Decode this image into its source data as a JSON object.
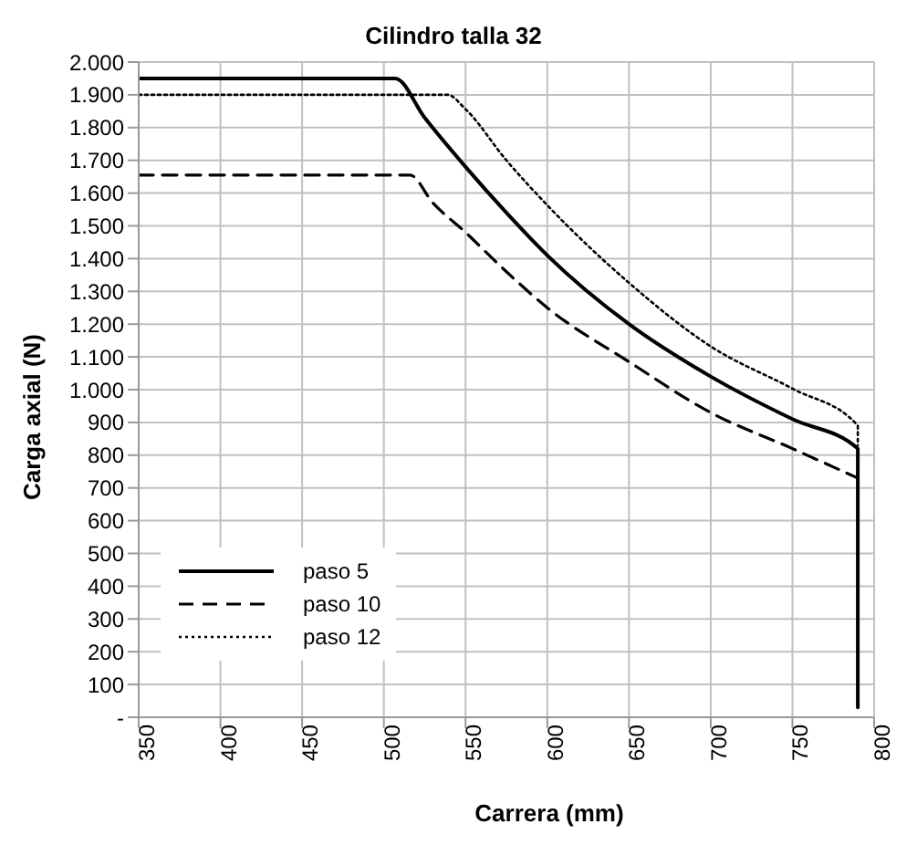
{
  "chart_data": {
    "type": "line",
    "title": "Cilindro talla 32",
    "xlabel": "Carrera (mm)",
    "ylabel": "Carga axial (N)",
    "xlim": [
      350,
      800
    ],
    "xticks": [
      350,
      400,
      450,
      500,
      550,
      600,
      650,
      700,
      750,
      800
    ],
    "ylim": [
      0,
      2000
    ],
    "yticks": [
      {
        "value": 0,
        "label": "-"
      },
      {
        "value": 100,
        "label": "100"
      },
      {
        "value": 200,
        "label": "200"
      },
      {
        "value": 300,
        "label": "300"
      },
      {
        "value": 400,
        "label": "400"
      },
      {
        "value": 500,
        "label": "500"
      },
      {
        "value": 600,
        "label": "600"
      },
      {
        "value": 700,
        "label": "700"
      },
      {
        "value": 800,
        "label": "800"
      },
      {
        "value": 900,
        "label": "900"
      },
      {
        "value": 1000,
        "label": "1.000"
      },
      {
        "value": 1100,
        "label": "1.100"
      },
      {
        "value": 1200,
        "label": "1.200"
      },
      {
        "value": 1300,
        "label": "1.300"
      },
      {
        "value": 1400,
        "label": "1.400"
      },
      {
        "value": 1500,
        "label": "1.500"
      },
      {
        "value": 1600,
        "label": "1.600"
      },
      {
        "value": 1700,
        "label": "1.700"
      },
      {
        "value": 1800,
        "label": "1.800"
      },
      {
        "value": 1900,
        "label": "1.900"
      },
      {
        "value": 2000,
        "label": "2.000"
      }
    ],
    "grid": true,
    "legend": "bottom left",
    "marker": "none",
    "series": [
      {
        "name": "paso 5",
        "color": "#000000",
        "line_style": "solid",
        "x": [
          350,
          507,
          525,
          550,
          575,
          600,
          650,
          700,
          750,
          790,
          790
        ],
        "values": [
          1950,
          1950,
          1830,
          1680,
          1540,
          1410,
          1200,
          1040,
          910,
          820,
          30
        ]
      },
      {
        "name": "paso 10",
        "color": "#000000",
        "line_style": "dashed",
        "x": [
          350,
          516,
          530,
          550,
          575,
          600,
          650,
          700,
          750,
          790
        ],
        "values": [
          1655,
          1655,
          1570,
          1480,
          1360,
          1250,
          1085,
          930,
          820,
          730
        ]
      },
      {
        "name": "paso 12",
        "color": "#000000",
        "line_style": "dotted",
        "x": [
          350,
          539,
          550,
          575,
          600,
          650,
          700,
          750,
          790,
          790
        ],
        "values": [
          1900,
          1900,
          1856,
          1700,
          1563,
          1326,
          1132,
          1003,
          890,
          830
        ]
      }
    ]
  }
}
